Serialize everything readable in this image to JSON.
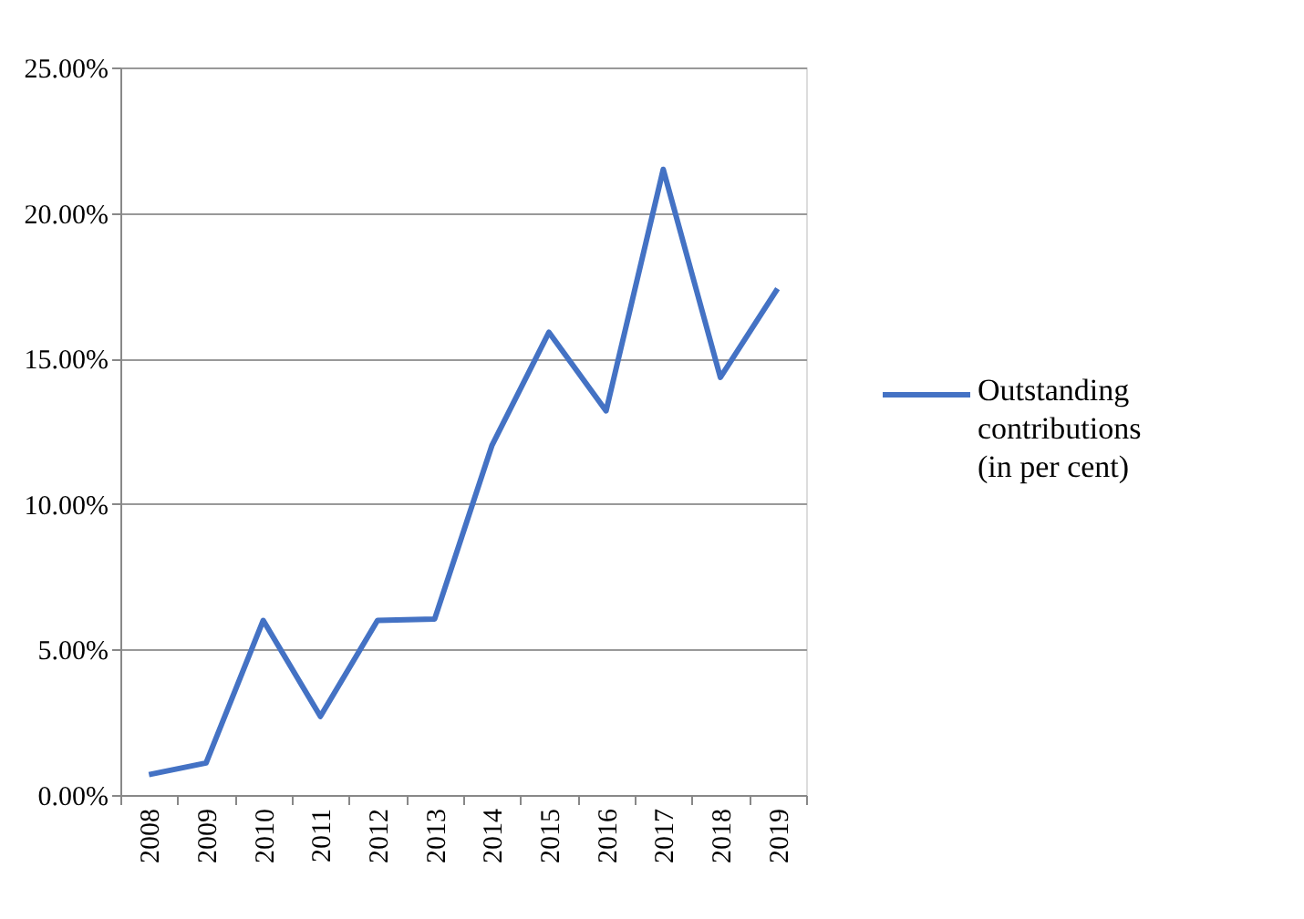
{
  "chart_data": {
    "type": "line",
    "categories": [
      "2008",
      "2009",
      "2010",
      "2011",
      "2012",
      "2013",
      "2014",
      "2015",
      "2016",
      "2017",
      "2018",
      "2019"
    ],
    "series": [
      {
        "name": "Outstanding contributions (in per cent)",
        "color": "#4472c4",
        "values": [
          0.7,
          1.1,
          6.0,
          2.7,
          6.0,
          6.05,
          12.0,
          15.9,
          13.2,
          21.5,
          14.35,
          17.4
        ]
      }
    ],
    "ylim": [
      0,
      25
    ],
    "yticks": [
      {
        "value": 0,
        "label": "0.00%"
      },
      {
        "value": 5,
        "label": "5.00%"
      },
      {
        "value": 10,
        "label": "10.00%"
      },
      {
        "value": 15,
        "label": "15.00%"
      },
      {
        "value": 20,
        "label": "20.00%"
      },
      {
        "value": 25,
        "label": "25.00%"
      }
    ],
    "grid": "y",
    "legend": "right",
    "marker": "none",
    "line_style": "solid"
  }
}
